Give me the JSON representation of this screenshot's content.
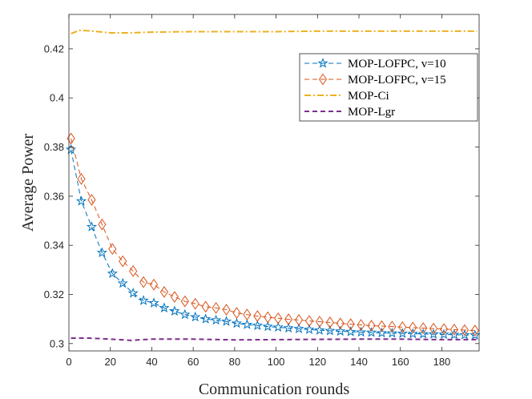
{
  "chart_data": {
    "type": "line",
    "title": "",
    "xlabel": "Communication rounds",
    "ylabel": "Average Power",
    "xlim": [
      0,
      198
    ],
    "ylim": [
      0.297,
      0.434
    ],
    "xticks": [
      0,
      20,
      40,
      60,
      80,
      100,
      120,
      140,
      160,
      180
    ],
    "yticks": [
      0.3,
      0.32,
      0.34,
      0.36,
      0.38,
      0.4,
      0.42
    ],
    "ytick_labels": [
      "0.3",
      "0.32",
      "0.34",
      "0.36",
      "0.38",
      "0.4",
      "0.42"
    ],
    "grid": false,
    "legend_position": "upper-right",
    "series": [
      {
        "name": "MOP-LOFPC, v=10",
        "color": "#0072BD",
        "marker": "star",
        "line_style": "dashed",
        "x": [
          1,
          6,
          11,
          16,
          21,
          26,
          31,
          36,
          41,
          46,
          51,
          56,
          61,
          66,
          71,
          76,
          81,
          86,
          91,
          96,
          101,
          106,
          111,
          116,
          121,
          126,
          131,
          136,
          141,
          146,
          151,
          156,
          161,
          166,
          171,
          176,
          181,
          186,
          191,
          196
        ],
        "y": [
          0.379,
          0.358,
          0.3475,
          0.337,
          0.3285,
          0.3245,
          0.3205,
          0.3175,
          0.3165,
          0.3145,
          0.3132,
          0.3118,
          0.3108,
          0.31,
          0.3095,
          0.309,
          0.3082,
          0.3077,
          0.3073,
          0.3069,
          0.3066,
          0.3063,
          0.306,
          0.3057,
          0.3054,
          0.3052,
          0.305,
          0.3048,
          0.3046,
          0.3045,
          0.3043,
          0.3042,
          0.3041,
          0.304,
          0.3039,
          0.3038,
          0.3037,
          0.3036,
          0.3035,
          0.3034
        ]
      },
      {
        "name": "MOP-LOFPC, v=15",
        "color": "#D95319",
        "marker": "diamond",
        "line_style": "dashed",
        "x": [
          1,
          6,
          11,
          16,
          21,
          26,
          31,
          36,
          41,
          46,
          51,
          56,
          61,
          66,
          71,
          76,
          81,
          86,
          91,
          96,
          101,
          106,
          111,
          116,
          121,
          126,
          131,
          136,
          141,
          146,
          151,
          156,
          161,
          166,
          171,
          176,
          181,
          186,
          191,
          196
        ],
        "y": [
          0.3835,
          0.367,
          0.3585,
          0.3485,
          0.3385,
          0.3335,
          0.3295,
          0.325,
          0.324,
          0.321,
          0.319,
          0.3172,
          0.3162,
          0.315,
          0.3145,
          0.3138,
          0.3125,
          0.3118,
          0.3112,
          0.3107,
          0.3103,
          0.3099,
          0.3096,
          0.3092,
          0.3089,
          0.3086,
          0.3082,
          0.3079,
          0.3076,
          0.3073,
          0.3071,
          0.3069,
          0.3067,
          0.3065,
          0.3063,
          0.3061,
          0.3059,
          0.3057,
          0.3055,
          0.3053
        ]
      },
      {
        "name": "MOP-Ci",
        "color": "#EDB120",
        "marker": "none",
        "line_style": "dashdot",
        "x": [
          1,
          5,
          10,
          20,
          30,
          40,
          60,
          80,
          100,
          120,
          140,
          160,
          180,
          197
        ],
        "y": [
          0.4262,
          0.4275,
          0.4273,
          0.4265,
          0.4265,
          0.4268,
          0.427,
          0.427,
          0.427,
          0.4272,
          0.4272,
          0.4272,
          0.4272,
          0.4272
        ]
      },
      {
        "name": "MOP-Lgr",
        "color": "#7E2F8E",
        "marker": "none",
        "line_style": "dashed",
        "x": [
          1,
          10,
          20,
          30,
          40,
          60,
          80,
          100,
          120,
          140,
          160,
          180,
          197
        ],
        "y": [
          0.3022,
          0.3022,
          0.3018,
          0.3013,
          0.3018,
          0.3018,
          0.3015,
          0.3016,
          0.3017,
          0.3018,
          0.3018,
          0.3016,
          0.3016
        ]
      }
    ]
  }
}
